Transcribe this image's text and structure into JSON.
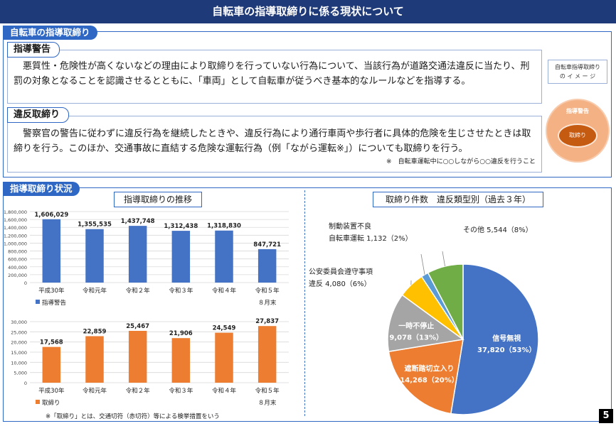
{
  "header": {
    "title": "自転車の指導取締りに係る現状について"
  },
  "section1": {
    "tab": "自転車の指導取締り",
    "warning": {
      "label": "指導警告",
      "text": "　悪質性・危険性が高くないなどの理由により取締りを行っていない行為について、当該行為が道路交通法違反に当たり、刑罰の対象となることを認識させるとともに、「車両」として自転車が従うべき基本的なルールなどを指導する。"
    },
    "violation": {
      "label": "違反取締り",
      "text": "　警察官の警告に従わずに違反行為を継続したときや、違反行為により通行車両や歩行者に具体的危険を生じさせたときは取締りを行う。このほか、交通事故に直結する危険な運転行為（例「ながら運転※」）についても取締りを行う。",
      "note": "※　自転車運転中に○○しながら○○違反を行うこと"
    },
    "image_box": {
      "line1": "自転車指導取締り",
      "line2": "の イ メ ー ジ"
    },
    "circle": {
      "outer_label": "指導警告",
      "inner_label": "取締り"
    }
  },
  "section2": {
    "tab": "指導取締り状況",
    "trend_title": "指導取締りの推移",
    "pie_title": "取締り件数　違反類型別（過去３年）",
    "footnote": "※「取締り」とは、交通切符（赤切符）等による検挙措置をいう"
  },
  "chart_data": [
    {
      "type": "bar",
      "categories": [
        "平成30年",
        "令和元年",
        "令和２年",
        "令和３年",
        "令和４年",
        "令和５年"
      ],
      "category_sub": [
        "",
        "",
        "",
        "",
        "",
        "８月末"
      ],
      "series": [
        {
          "name": "指導警告",
          "values": [
            1606029,
            1355535,
            1437748,
            1312438,
            1318830,
            847721
          ]
        }
      ],
      "value_labels": [
        "1,606,029",
        "1,355,535",
        "1,437,748",
        "1,312,438",
        "1,318,830",
        "847,721"
      ],
      "ylim": [
        0,
        1800000
      ],
      "yticks": [
        "0",
        "200,000",
        "400,000",
        "600,000",
        "800,000",
        "1,000,000",
        "1,200,000",
        "1,400,000",
        "1,600,000",
        "1,800,000"
      ],
      "color": "#4472c4",
      "grid": true,
      "legend": "bottom-left"
    },
    {
      "type": "bar",
      "categories": [
        "平成30年",
        "令和元年",
        "令和２年",
        "令和３年",
        "令和４年",
        "令和５年"
      ],
      "category_sub": [
        "",
        "",
        "",
        "",
        "",
        "８月末"
      ],
      "series": [
        {
          "name": "取締り",
          "values": [
            17568,
            22859,
            25467,
            21906,
            24549,
            27837
          ]
        }
      ],
      "value_labels": [
        "17,568",
        "22,859",
        "25,467",
        "21,906",
        "24,549",
        "27,837"
      ],
      "ylim": [
        0,
        30000
      ],
      "yticks": [
        "0",
        "5,000",
        "10,000",
        "15,000",
        "20,000",
        "25,000",
        "30,000"
      ],
      "color": "#ed7d31",
      "grid": true,
      "legend": "bottom-left"
    },
    {
      "type": "pie",
      "slices": [
        {
          "label": "信号無視",
          "value_text": "37,820（53%）",
          "value": 37820,
          "percent": 53,
          "color": "#4472c4"
        },
        {
          "label": "遮断踏切立入り",
          "value_text": "14,268（20%）",
          "value": 14268,
          "percent": 20,
          "color": "#ed7d31"
        },
        {
          "label": "一時不停止",
          "value_text": "9,078（13%）",
          "value": 9078,
          "percent": 13,
          "color": "#a5a5a5"
        },
        {
          "label": "公安委員会遵守事項違反",
          "label_line1": "公安委員会遵守事項",
          "label_line2": "違反",
          "value_text": "4,080（6%）",
          "value": 4080,
          "percent": 6,
          "color": "#ffc000"
        },
        {
          "label": "制動装置不良自転車運転",
          "label_line1": "制動装置不良",
          "label_line2": "自転車運転",
          "value_text": "1,132（2%）",
          "value": 1132,
          "percent": 2,
          "color": "#5b9bd5"
        },
        {
          "label": "その他",
          "value_text": "5,544（8%）",
          "value": 5544,
          "percent": 8,
          "color": "#70ad47"
        }
      ]
    }
  ],
  "page_number": "5"
}
